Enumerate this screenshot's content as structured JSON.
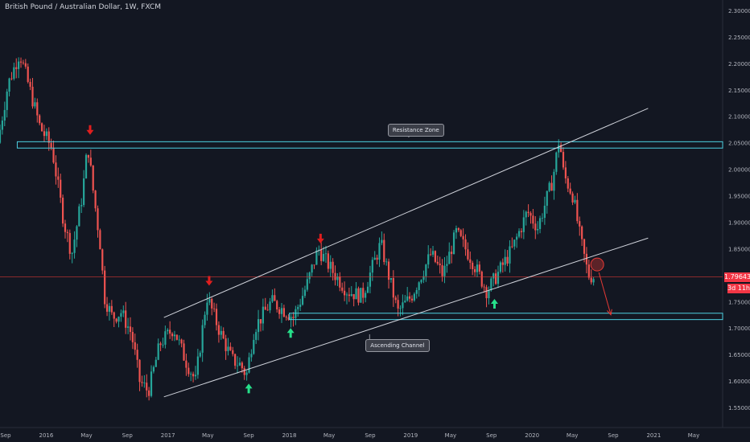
{
  "header": {
    "title": "British Pound / Australian Dollar, 1W, FXCM"
  },
  "current_price": {
    "label": "1.79643",
    "countdown": "3d 11h",
    "color": "#f23645"
  },
  "annotations": {
    "resistance": "Resistance Zone",
    "channel": "Ascending Channel"
  },
  "colors": {
    "up": "#26a69a",
    "down": "#ef5350",
    "zone": "#4dd0e1",
    "line": "#d1d4dc",
    "arrow_up": "#26e08a",
    "arrow_down": "#e01e1e",
    "forecast": "#e53935"
  },
  "chart_data": {
    "type": "candlestick",
    "symbol": "GBPAUD",
    "timeframe": "1W",
    "x_range": [
      "2015-08-15",
      "2021-08-01"
    ],
    "ylim": [
      1.52,
      2.31
    ],
    "y_ticks": [
      "2.30000",
      "2.25000",
      "2.20000",
      "2.15000",
      "2.10000",
      "2.05000",
      "2.00000",
      "1.95000",
      "1.90000",
      "1.85000",
      "1.80000",
      "1.75000",
      "1.70000",
      "1.65000",
      "1.60000",
      "1.55000"
    ],
    "x_ticks": [
      {
        "label": "Sep",
        "date": "2015-09-01"
      },
      {
        "label": "2016",
        "date": "2016-01-01"
      },
      {
        "label": "May",
        "date": "2016-05-01"
      },
      {
        "label": "Sep",
        "date": "2016-09-01"
      },
      {
        "label": "2017",
        "date": "2017-01-01"
      },
      {
        "label": "May",
        "date": "2017-05-01"
      },
      {
        "label": "Sep",
        "date": "2017-09-01"
      },
      {
        "label": "2018",
        "date": "2018-01-01"
      },
      {
        "label": "May",
        "date": "2018-05-01"
      },
      {
        "label": "Sep",
        "date": "2018-09-01"
      },
      {
        "label": "2019",
        "date": "2019-01-01"
      },
      {
        "label": "May",
        "date": "2019-05-01"
      },
      {
        "label": "Sep",
        "date": "2019-09-01"
      },
      {
        "label": "2020",
        "date": "2020-01-01"
      },
      {
        "label": "May",
        "date": "2020-05-01"
      },
      {
        "label": "Sep",
        "date": "2020-09-01"
      },
      {
        "label": "2021",
        "date": "2021-01-01"
      },
      {
        "label": "May",
        "date": "2021-05-01"
      }
    ],
    "price_path": [
      [
        "2015-08-15",
        2.05
      ],
      [
        "2015-09-15",
        2.16
      ],
      [
        "2015-10-20",
        2.22
      ],
      [
        "2015-11-20",
        2.15
      ],
      [
        "2015-12-20",
        2.08
      ],
      [
        "2016-01-25",
        2.04
      ],
      [
        "2016-03-01",
        1.9
      ],
      [
        "2016-03-25",
        1.84
      ],
      [
        "2016-04-25",
        1.95
      ],
      [
        "2016-05-12",
        2.045
      ],
      [
        "2016-05-28",
        1.96
      ],
      [
        "2016-06-20",
        1.85
      ],
      [
        "2016-06-30",
        1.76
      ],
      [
        "2016-07-25",
        1.72
      ],
      [
        "2016-08-20",
        1.73
      ],
      [
        "2016-09-20",
        1.69
      ],
      [
        "2016-10-15",
        1.6
      ],
      [
        "2016-11-10",
        1.58
      ],
      [
        "2016-12-15",
        1.67
      ],
      [
        "2017-01-25",
        1.7
      ],
      [
        "2017-03-01",
        1.64
      ],
      [
        "2017-04-01",
        1.6
      ],
      [
        "2017-05-05",
        1.76
      ],
      [
        "2017-06-15",
        1.69
      ],
      [
        "2017-07-20",
        1.64
      ],
      [
        "2017-08-15",
        1.63
      ],
      [
        "2017-09-01",
        1.61
      ],
      [
        "2017-09-25",
        1.7
      ],
      [
        "2017-11-15",
        1.75
      ],
      [
        "2018-01-01",
        1.73
      ],
      [
        "2018-01-20",
        1.72
      ],
      [
        "2018-03-01",
        1.78
      ],
      [
        "2018-04-05",
        1.85
      ],
      [
        "2018-05-15",
        1.81
      ],
      [
        "2018-07-01",
        1.77
      ],
      [
        "2018-08-15",
        1.76
      ],
      [
        "2018-10-10",
        1.86
      ],
      [
        "2018-11-30",
        1.73
      ],
      [
        "2019-01-10",
        1.76
      ],
      [
        "2019-03-10",
        1.84
      ],
      [
        "2019-04-15",
        1.8
      ],
      [
        "2019-05-25",
        1.88
      ],
      [
        "2019-07-10",
        1.83
      ],
      [
        "2019-08-25",
        1.77
      ],
      [
        "2019-09-15",
        1.79
      ],
      [
        "2019-11-10",
        1.85
      ],
      [
        "2019-12-25",
        1.92
      ],
      [
        "2020-01-25",
        1.89
      ],
      [
        "2020-03-10",
        1.98
      ],
      [
        "2020-03-30",
        2.06
      ],
      [
        "2020-04-12",
        1.99
      ],
      [
        "2020-05-10",
        1.95
      ],
      [
        "2020-06-01",
        1.87
      ],
      [
        "2020-06-25",
        1.8
      ],
      [
        "2020-07-10",
        1.797
      ]
    ],
    "levels": {
      "resistance_zone": [
        2.04,
        2.052
      ],
      "support_zone": [
        1.716,
        1.728
      ],
      "current": 1.79643
    },
    "channel": {
      "upper": [
        [
          "2016-12-20",
          1.72
        ],
        [
          "2020-12-15",
          2.115
        ]
      ],
      "lower": [
        [
          "2016-12-20",
          1.57
        ],
        [
          "2020-12-15",
          1.87
        ]
      ]
    },
    "markers": {
      "down": [
        [
          "2016-05-12",
          2.065
        ],
        [
          "2017-05-05",
          1.78
        ],
        [
          "2018-04-05",
          1.86
        ]
      ],
      "up": [
        [
          "2017-09-01",
          1.595
        ],
        [
          "2018-01-05",
          1.7
        ],
        [
          "2019-09-10",
          1.755
        ]
      ]
    },
    "projection": {
      "circle": [
        "2020-07-15",
        1.82
      ],
      "from": [
        "2020-07-20",
        1.805
      ],
      "to": [
        "2020-08-25",
        1.725
      ]
    }
  }
}
